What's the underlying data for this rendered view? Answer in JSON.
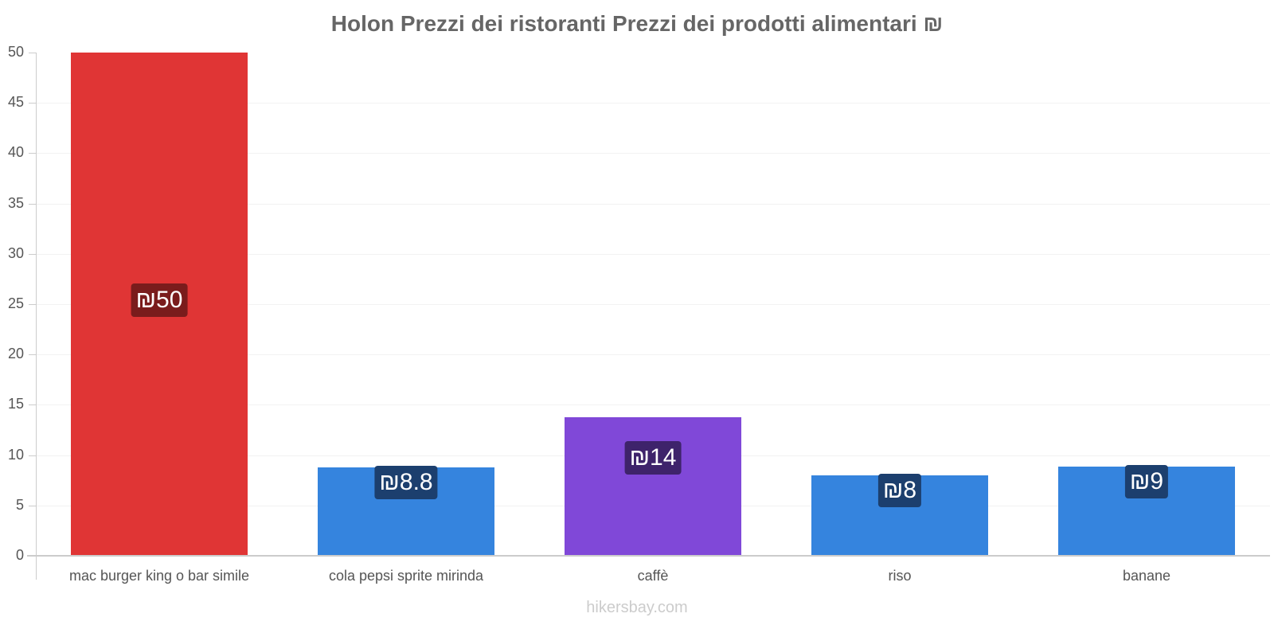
{
  "title": "Holon Prezzi dei ristoranti Prezzi dei prodotti alimentari ₪",
  "watermark": "hikersbay.com",
  "y_ticks": [
    "50",
    "45",
    "40",
    "35",
    "30",
    "25",
    "20",
    "15",
    "10",
    "5",
    "0"
  ],
  "bars": [
    {
      "category": "mac burger king o bar simile",
      "value": 50,
      "label": "₪50",
      "color": "#e03535",
      "label_bg": "#7a1c1c"
    },
    {
      "category": "cola pepsi sprite mirinda",
      "value": 8.8,
      "label": "₪8.8",
      "color": "#3584de",
      "label_bg": "#1c3f6e"
    },
    {
      "category": "caffè",
      "value": 13.8,
      "label": "₪14",
      "color": "#8048d8",
      "label_bg": "#3e236b"
    },
    {
      "category": "riso",
      "value": 8.0,
      "label": "₪8",
      "color": "#3584de",
      "label_bg": "#1c3f6e"
    },
    {
      "category": "banane",
      "value": 8.9,
      "label": "₪9",
      "color": "#3584de",
      "label_bg": "#1c3f6e"
    }
  ],
  "chart_data": {
    "type": "bar",
    "title": "Holon Prezzi dei ristoranti Prezzi dei prodotti alimentari ₪",
    "categories": [
      "mac burger king o bar simile",
      "cola pepsi sprite mirinda",
      "caffè",
      "riso",
      "banane"
    ],
    "values": [
      50,
      8.8,
      13.8,
      8.0,
      8.9
    ],
    "data_labels": [
      "₪50",
      "₪8.8",
      "₪14",
      "₪8",
      "₪9"
    ],
    "colors": [
      "#e03535",
      "#3584de",
      "#8048d8",
      "#3584de",
      "#3584de"
    ],
    "xlabel": "",
    "ylabel": "",
    "ylim": [
      0,
      50
    ],
    "yticks": [
      0,
      5,
      10,
      15,
      20,
      25,
      30,
      35,
      40,
      45,
      50
    ],
    "grid": true,
    "legend": "none"
  }
}
